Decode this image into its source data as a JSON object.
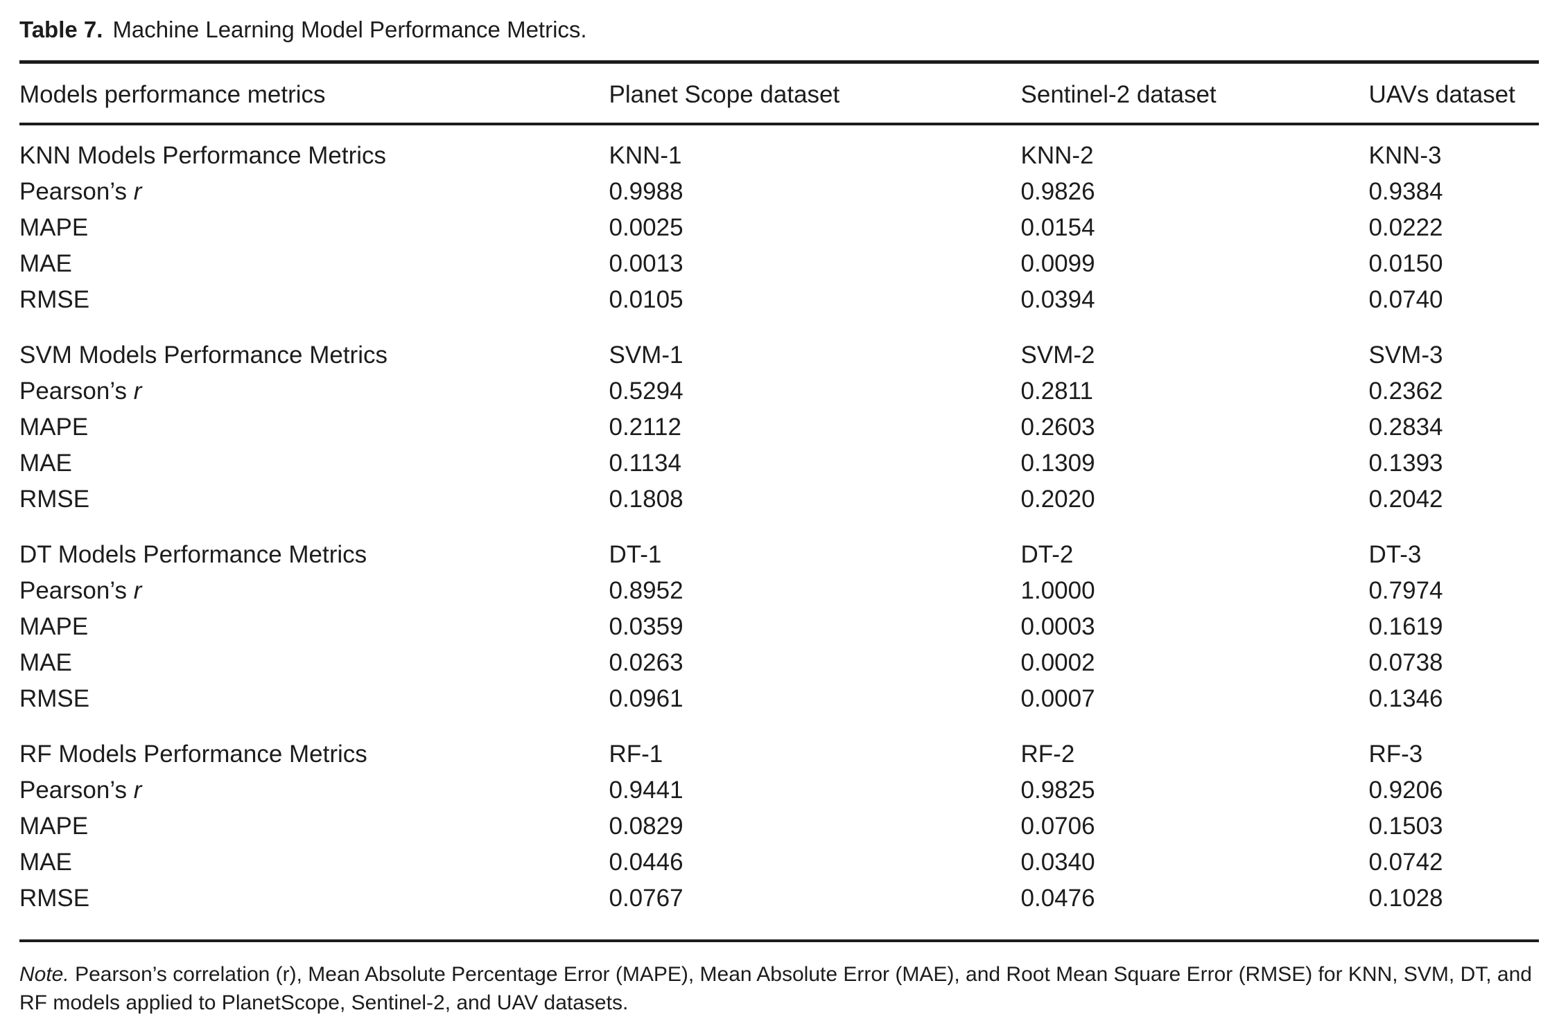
{
  "colors": {
    "background": "#ffffff",
    "text": "#1c1c1c",
    "rule": "#1c1c1c"
  },
  "table": {
    "caption": {
      "label": "Table 7.",
      "title": "Machine Learning Model Performance Metrics."
    },
    "columns": [
      "Models performance metrics",
      "Planet Scope dataset",
      "Sentinel-2 dataset",
      "UAVs dataset"
    ],
    "sections": [
      {
        "header": "KNN Models Performance Metrics",
        "models": [
          "KNN-1",
          "KNN-2",
          "KNN-3"
        ],
        "rows": [
          {
            "label": "Pearson’s",
            "symbol": "r",
            "values": [
              "0.9988",
              "0.9826",
              "0.9384"
            ]
          },
          {
            "label": "MAPE",
            "symbol": "",
            "values": [
              "0.0025",
              "0.0154",
              "0.0222"
            ]
          },
          {
            "label": "MAE",
            "symbol": "",
            "values": [
              "0.0013",
              "0.0099",
              "0.0150"
            ]
          },
          {
            "label": "RMSE",
            "symbol": "",
            "values": [
              "0.0105",
              "0.0394",
              "0.0740"
            ]
          }
        ]
      },
      {
        "header": "SVM Models Performance Metrics",
        "models": [
          "SVM-1",
          "SVM-2",
          "SVM-3"
        ],
        "rows": [
          {
            "label": "Pearson’s",
            "symbol": "r",
            "values": [
              "0.5294",
              "0.2811",
              "0.2362"
            ]
          },
          {
            "label": "MAPE",
            "symbol": "",
            "values": [
              "0.2112",
              "0.2603",
              "0.2834"
            ]
          },
          {
            "label": "MAE",
            "symbol": "",
            "values": [
              "0.1134",
              "0.1309",
              "0.1393"
            ]
          },
          {
            "label": "RMSE",
            "symbol": "",
            "values": [
              "0.1808",
              "0.2020",
              "0.2042"
            ]
          }
        ]
      },
      {
        "header": "DT Models Performance Metrics",
        "models": [
          "DT-1",
          "DT-2",
          "DT-3"
        ],
        "rows": [
          {
            "label": "Pearson’s",
            "symbol": "r",
            "values": [
              "0.8952",
              "1.0000",
              "0.7974"
            ]
          },
          {
            "label": "MAPE",
            "symbol": "",
            "values": [
              "0.0359",
              "0.0003",
              "0.1619"
            ]
          },
          {
            "label": "MAE",
            "symbol": "",
            "values": [
              "0.0263",
              "0.0002",
              "0.0738"
            ]
          },
          {
            "label": "RMSE",
            "symbol": "",
            "values": [
              "0.0961",
              "0.0007",
              "0.1346"
            ]
          }
        ]
      },
      {
        "header": "RF Models Performance Metrics",
        "models": [
          "RF-1",
          "RF-2",
          "RF-3"
        ],
        "rows": [
          {
            "label": "Pearson’s",
            "symbol": "r",
            "values": [
              "0.9441",
              "0.9825",
              "0.9206"
            ]
          },
          {
            "label": "MAPE",
            "symbol": "",
            "values": [
              "0.0829",
              "0.0706",
              "0.1503"
            ]
          },
          {
            "label": "MAE",
            "symbol": "",
            "values": [
              "0.0446",
              "0.0340",
              "0.0742"
            ]
          },
          {
            "label": "RMSE",
            "symbol": "",
            "values": [
              "0.0767",
              "0.0476",
              "0.1028"
            ]
          }
        ]
      }
    ],
    "note_label": "Note.",
    "note_text": "Pearson’s correlation (r), Mean Absolute Percentage Error (MAPE), Mean Absolute Error (MAE), and Root Mean Square Error (RMSE) for KNN, SVM, DT, and RF models applied to PlanetScope, Sentinel-2, and UAV datasets."
  }
}
